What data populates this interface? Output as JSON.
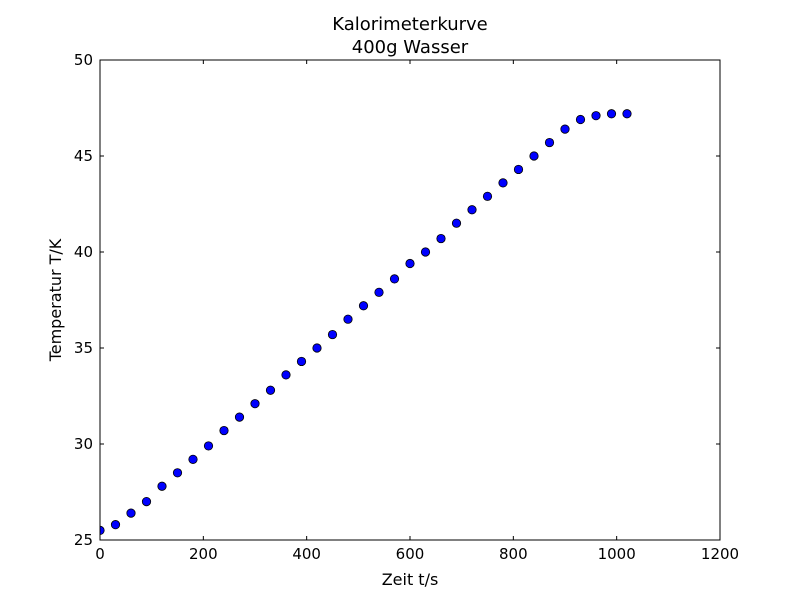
{
  "chart_data": {
    "type": "scatter",
    "title": "Kalorimeterkurve",
    "subtitle": "400g Wasser",
    "xlabel": "Zeit t/s",
    "ylabel": "Temperatur T/K",
    "xlim": [
      0,
      1200
    ],
    "ylim": [
      25,
      50
    ],
    "xticks": [
      0,
      200,
      400,
      600,
      800,
      1000,
      1200
    ],
    "yticks": [
      25,
      30,
      35,
      40,
      45,
      50
    ],
    "grid": false,
    "marker_color": "#0000ff",
    "marker_edge_color": "#000000",
    "series": [
      {
        "x": [
          0,
          30,
          60,
          90,
          120,
          150,
          180,
          210,
          240,
          270,
          300,
          330,
          360,
          390,
          420,
          450,
          480,
          510,
          540,
          570,
          600,
          630,
          660,
          690,
          720,
          750,
          780,
          810,
          840,
          870,
          900,
          930,
          960,
          990,
          1020
        ],
        "y": [
          25.5,
          25.8,
          26.4,
          27.0,
          27.8,
          28.5,
          29.2,
          29.9,
          30.7,
          31.4,
          32.1,
          32.8,
          33.6,
          34.3,
          35.0,
          35.7,
          36.5,
          37.2,
          37.9,
          38.6,
          39.4,
          40.0,
          40.7,
          41.5,
          42.2,
          42.9,
          43.6,
          44.3,
          45.0,
          45.7,
          46.4,
          46.9,
          47.1,
          47.2,
          47.2
        ]
      }
    ]
  }
}
